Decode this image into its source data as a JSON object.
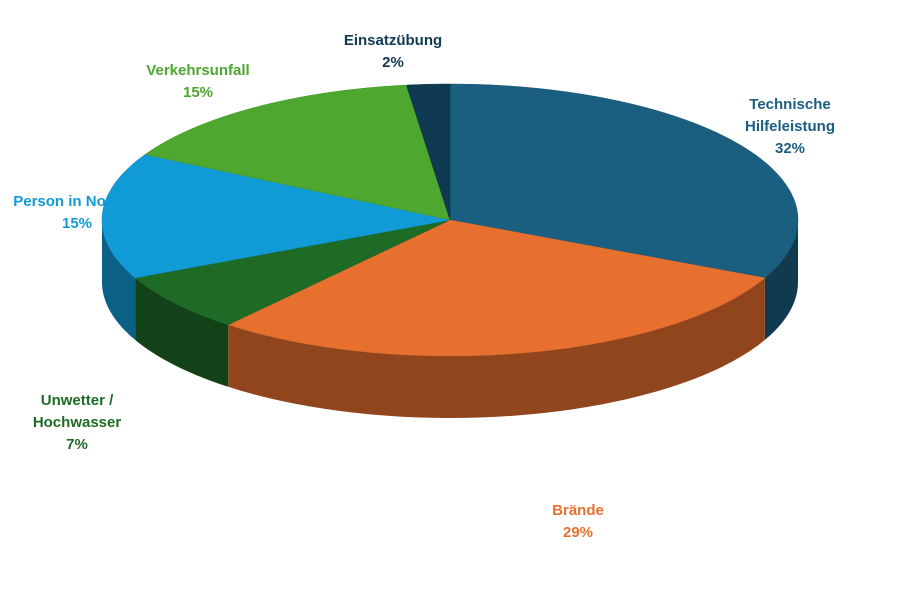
{
  "chart_data": {
    "type": "pie3d",
    "categories": [
      "Technische Hilfeleistung",
      "Brände",
      "Unwetter / Hochwasser",
      "Person in Notlage",
      "Verkehrsunfall",
      "Einsatzübung"
    ],
    "values": [
      32,
      29,
      7,
      15,
      15,
      2
    ],
    "value_labels": [
      "32%",
      "29%",
      "7%",
      "15%",
      "15%",
      "2%"
    ],
    "colors": [
      "#1a5e80",
      "#e8702f",
      "#1e6b26",
      "#119bd6",
      "#4ea72e",
      "#0f3a52"
    ]
  }
}
